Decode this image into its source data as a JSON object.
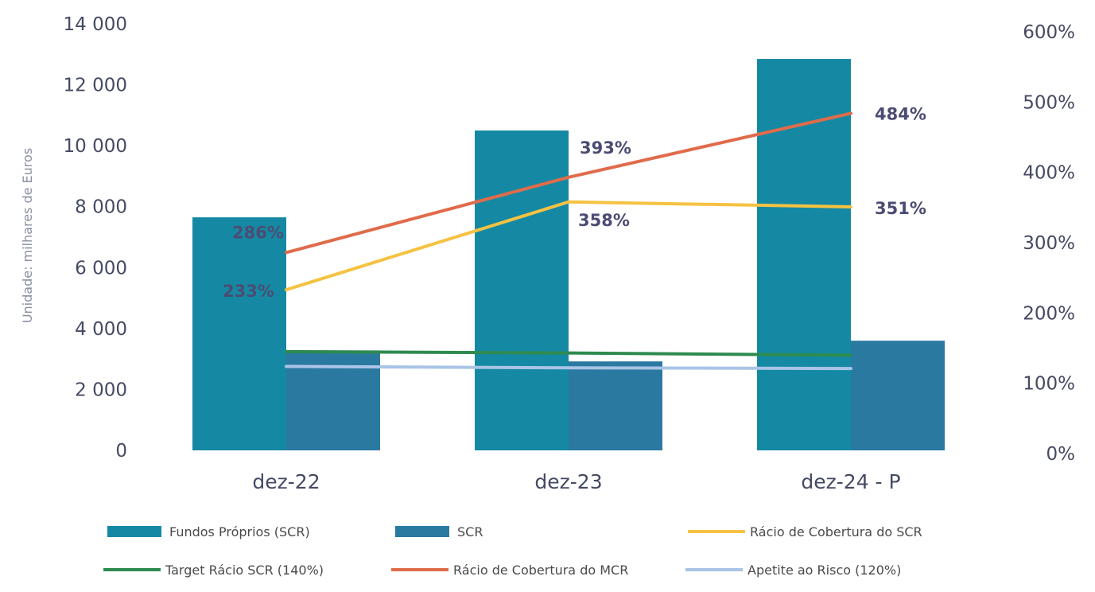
{
  "chart_data": {
    "type": "bar",
    "categories": [
      "dez-22",
      "dez-23",
      "dez-24 - P"
    ],
    "ylabel": "Unidade: milhares de Euros",
    "ylim": [
      0,
      14000
    ],
    "y_ticks": [
      "0",
      "2 000",
      "4 000",
      "6 000",
      "8 000",
      "10 000",
      "12 000",
      "14 000"
    ],
    "y2lim": [
      0,
      6
    ],
    "y2_ticks": [
      "0%",
      "100%",
      "200%",
      "300%",
      "400%",
      "500%",
      "600%"
    ],
    "bar_series": [
      {
        "name": "Fundos Próprios (SCR)",
        "values": [
          7650,
          10500,
          12850
        ],
        "color": "#1589a3"
      },
      {
        "name": "SCR",
        "values": [
          3280,
          2920,
          3600
        ],
        "color": "#2a79a1"
      }
    ],
    "line_series": [
      {
        "name": "Rácio de Cobertura do SCR",
        "axis": "right",
        "values": [
          2.33,
          3.58,
          3.51
        ],
        "labels": [
          "233%",
          "358%",
          "351%"
        ],
        "color": "#f5c242"
      },
      {
        "name": "Target Rácio SCR (140%)",
        "axis": "right",
        "values": [
          1.45,
          1.43,
          1.4
        ],
        "color": "#2e8a4f"
      },
      {
        "name": "Rácio de Cobertura do MCR",
        "axis": "right",
        "values": [
          2.86,
          3.93,
          4.84
        ],
        "labels": [
          "286%",
          "393%",
          "484%"
        ],
        "color": "#e06b4b"
      },
      {
        "name": "Apetite ao Risco (120%)",
        "axis": "right",
        "values": [
          1.24,
          1.22,
          1.21
        ],
        "color": "#a9c4e6"
      }
    ],
    "legend_position": "bottom",
    "grid": false
  }
}
